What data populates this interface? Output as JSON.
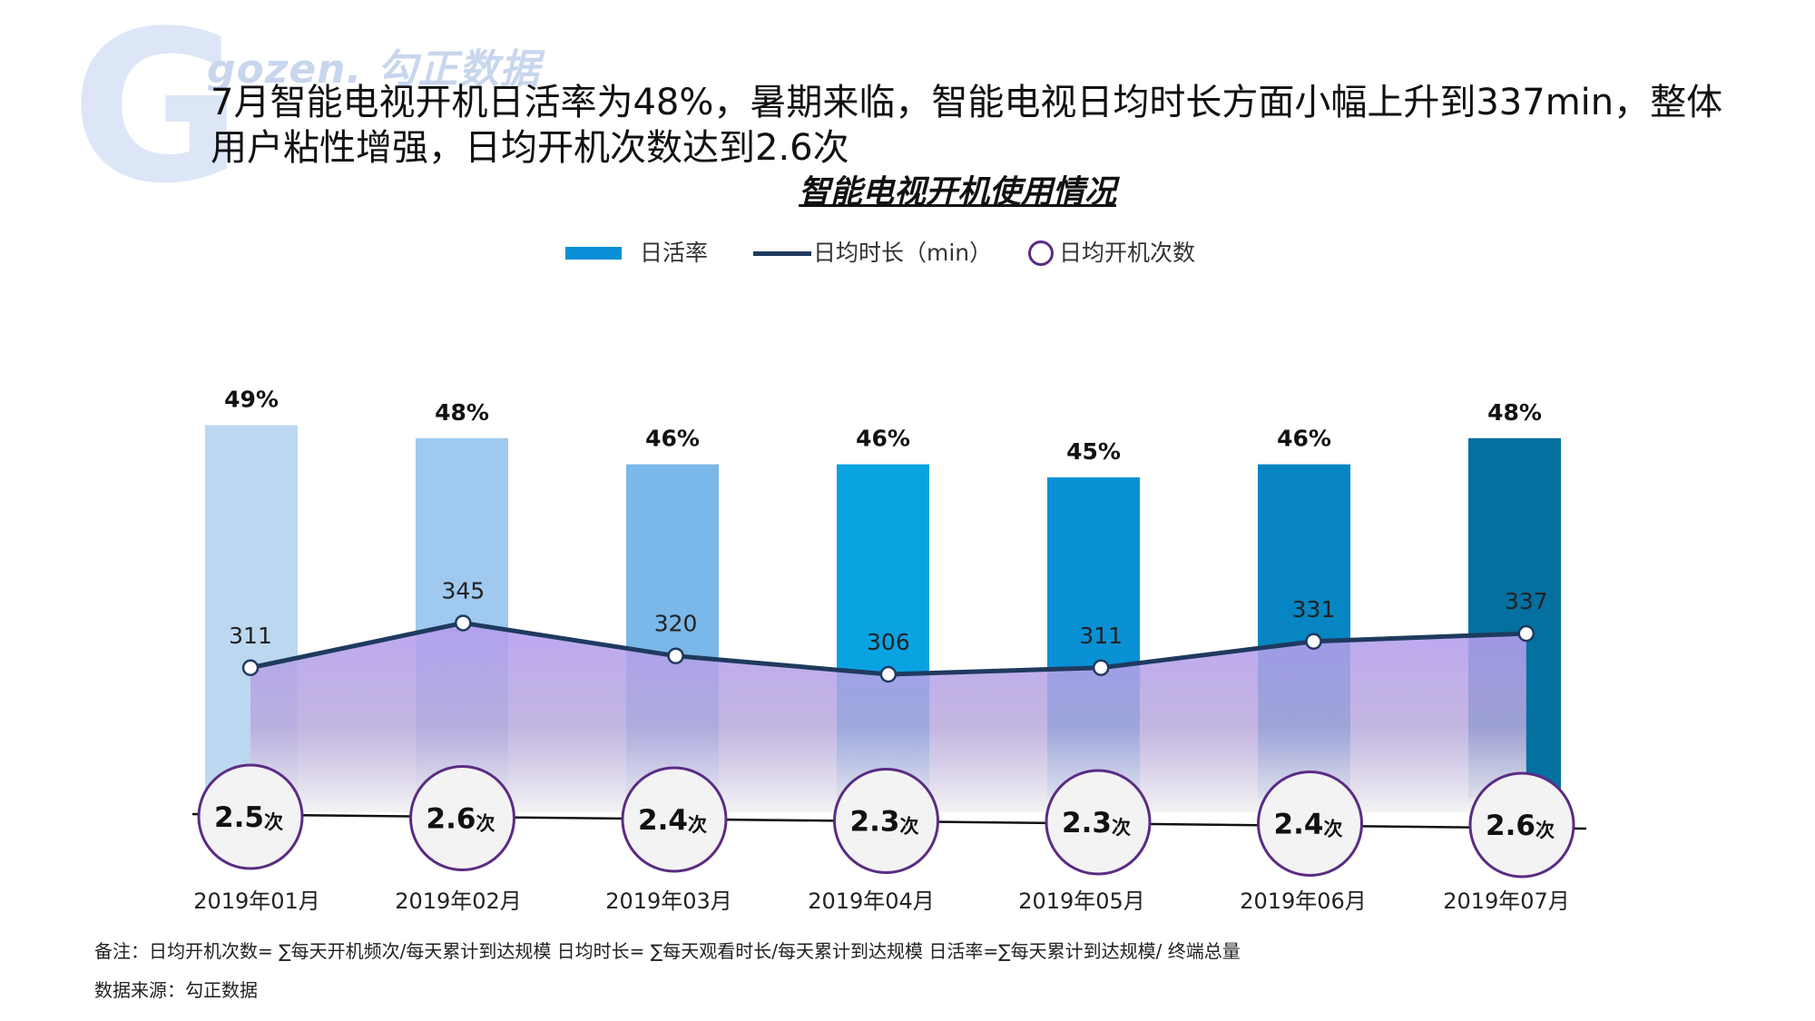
{
  "logo": {
    "letter": "G",
    "text": "gozen. 勾正数据"
  },
  "headline": "7月智能电视开机日活率为48%，暑期来临，智能电视日均时长方面小幅上升到337min，整体用户粘性增强，日均开机次数达到2.6次",
  "legend": {
    "bar_label": "日活率",
    "line_label": "日均时长（min）",
    "circle_label": "日均开机次数"
  },
  "colors": {
    "bars": [
      "#bcd8f1",
      "#9fc9ee",
      "#7ab8e9",
      "#0aa3e2",
      "#0a90d4",
      "#0685c2",
      "#04709f"
    ],
    "line": "#1f3a5f",
    "area_top": "#b49cf0",
    "area_bottom": "#f3f3f3",
    "circle_border": "#5b2c83",
    "circle_fill": "#f3f3f3"
  },
  "chart_data": {
    "title": "智能电视开机使用情况",
    "type": "bar+line",
    "categories": [
      "2019年01月",
      "2019年02月",
      "2019年03月",
      "2019年04月",
      "2019年05月",
      "2019年06月",
      "2019年07月"
    ],
    "series": [
      {
        "name": "日活率",
        "type": "bar",
        "unit": "%",
        "values": [
          49,
          48,
          46,
          46,
          45,
          46,
          48
        ],
        "labels": [
          "49%",
          "48%",
          "46%",
          "46%",
          "45%",
          "46%",
          "48%"
        ]
      },
      {
        "name": "日均时长（min）",
        "type": "area-line",
        "unit": "min",
        "values": [
          311,
          345,
          320,
          306,
          311,
          331,
          337
        ],
        "labels": [
          "311",
          "345",
          "320",
          "306",
          "311",
          "331",
          "337"
        ]
      },
      {
        "name": "日均开机次数",
        "type": "circle",
        "unit": "次",
        "values": [
          2.5,
          2.6,
          2.4,
          2.3,
          2.3,
          2.4,
          2.6
        ],
        "labels": [
          "2.5",
          "2.6",
          "2.4",
          "2.3",
          "2.3",
          "2.4",
          "2.6"
        ]
      }
    ]
  },
  "note": "备注：日均开机次数= ∑每天开机频次/每天累计到达规模    日均时长= ∑每天观看时长/每天累计到达规模    日活率=∑每天累计到达规模/ 终端总量",
  "source": "数据来源：勾正数据"
}
